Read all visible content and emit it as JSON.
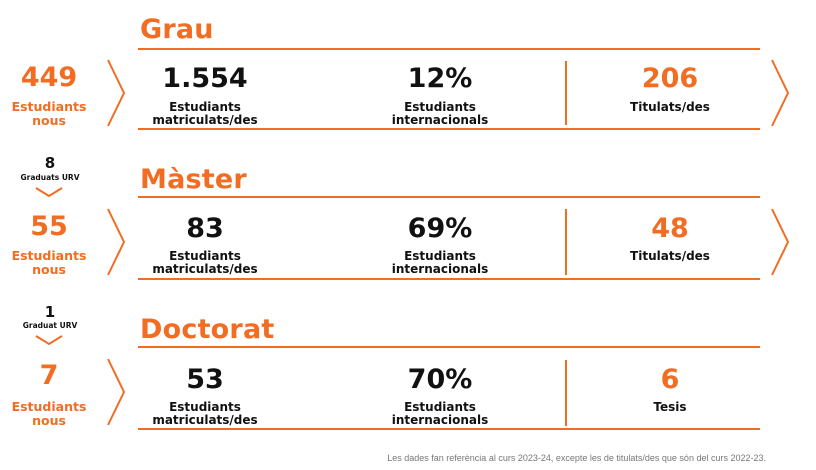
{
  "accent_color": "#f26c21",
  "text_color": "#111111",
  "sections": [
    {
      "title": "Grau",
      "new_students": {
        "value": "449",
        "label_line1": "Estudiants",
        "label_line2": "nous"
      },
      "enrolled": {
        "value": "1.554",
        "label_line1": "Estudiants",
        "label_line2": "matriculats/des"
      },
      "international": {
        "value": "12%",
        "label_line1": "Estudiants",
        "label_line2": "internacionals"
      },
      "outcome": {
        "value": "206",
        "label": "Titulats/des"
      }
    },
    {
      "title": "Màster",
      "urv_graduates": {
        "value": "8",
        "label": "Graduats URV"
      },
      "new_students": {
        "value": "55",
        "label_line1": "Estudiants",
        "label_line2": "nous"
      },
      "enrolled": {
        "value": "83",
        "label_line1": "Estudiants",
        "label_line2": "matriculats/des"
      },
      "international": {
        "value": "69%",
        "label_line1": "Estudiants",
        "label_line2": "internacionals"
      },
      "outcome": {
        "value": "48",
        "label": "Titulats/des"
      }
    },
    {
      "title": "Doctorat",
      "urv_graduates": {
        "value": "1",
        "label": "Graduat URV"
      },
      "new_students": {
        "value": "7",
        "label_line1": "Estudiants",
        "label_line2": "nous"
      },
      "enrolled": {
        "value": "53",
        "label_line1": "Estudiants",
        "label_line2": "matriculats/des"
      },
      "international": {
        "value": "70%",
        "label_line1": "Estudiants",
        "label_line2": "internacionals"
      },
      "outcome": {
        "value": "6",
        "label": "Tesis"
      }
    }
  ],
  "footnote": "Les dades fan referència al curs 2023-24, excepte les de titulats/des que són del curs 2022-23."
}
